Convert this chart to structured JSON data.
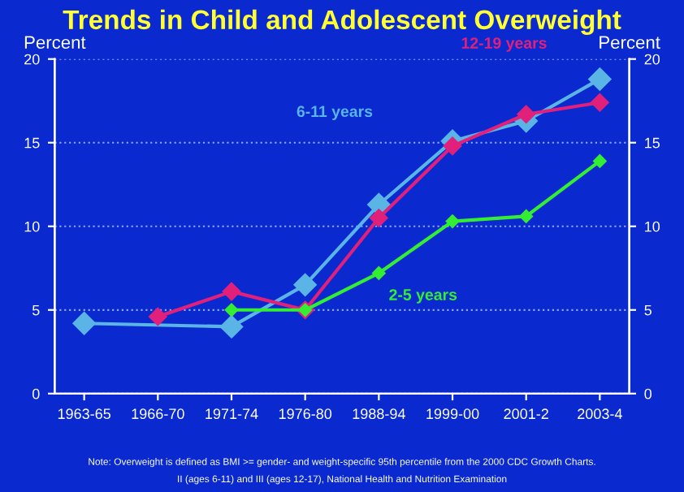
{
  "chart_data": {
    "type": "line",
    "title": "Trends in Child and Adolescent Overweight",
    "ylabel": "Percent",
    "y2label": "Percent",
    "categories": [
      "1963-65",
      "1966-70",
      "1971-74",
      "1976-80",
      "1988-94",
      "1999-00",
      "2001-2",
      "2003-4"
    ],
    "ylim": [
      0,
      20
    ],
    "yticks": [
      0,
      5,
      10,
      15,
      20
    ],
    "y2lim": [
      0,
      20
    ],
    "y2ticks": [
      0,
      5,
      10,
      15,
      20
    ],
    "grid": "y",
    "marker": "diamond",
    "series": [
      {
        "name": "6-11 years",
        "color": "#5ab4e6",
        "values": [
          4.2,
          null,
          4.0,
          6.5,
          11.3,
          15.1,
          16.3,
          18.8
        ]
      },
      {
        "name": "12-19 years",
        "color": "#e0207a",
        "values": [
          null,
          4.6,
          6.1,
          5.0,
          10.5,
          14.8,
          16.7,
          17.4
        ]
      },
      {
        "name": "2-5 years",
        "color": "#33ee33",
        "values": [
          null,
          null,
          5.0,
          5.0,
          7.2,
          10.3,
          10.6,
          13.9
        ]
      }
    ],
    "annotations": [
      "Note: Overweight is defined as BMI >= gender- and weight-specific 95th percentile from the 2000 CDC Growth Charts.",
      "II (ages 6-11) and III (ages 12-17), National Health and Nutrition Examination"
    ]
  }
}
